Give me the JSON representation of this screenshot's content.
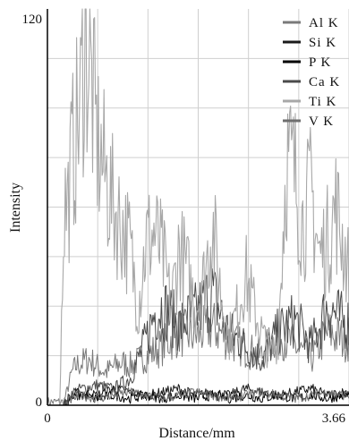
{
  "chart_data": {
    "type": "line",
    "title": "",
    "xlabel": "Distance/mm",
    "ylabel": "Intensity",
    "xlim": [
      0,
      3.66
    ],
    "ylim": [
      0,
      120
    ],
    "x_tick_labels": [
      "0",
      "3.66"
    ],
    "y_tick_labels": [
      "0",
      "120"
    ],
    "grid": true,
    "legend_position": "top-right",
    "series": [
      {
        "name": "Al K",
        "color": "#7a7a7a",
        "x": [
          0,
          0.2,
          0.3,
          0.35,
          0.5,
          0.7,
          0.9,
          1.0,
          1.2,
          1.4,
          1.6,
          1.8,
          2.0,
          2.2,
          2.4,
          2.6,
          2.8,
          3.0,
          3.2,
          3.4,
          3.6
        ],
        "values": [
          1,
          1,
          10,
          12,
          14,
          10,
          13,
          12,
          15,
          18,
          22,
          21,
          24,
          20,
          17,
          15,
          22,
          18,
          14,
          22,
          20
        ]
      },
      {
        "name": "Si K",
        "color": "#1a1a1a",
        "x": [
          0,
          0.2,
          0.3,
          0.4,
          0.6,
          0.8,
          1.0,
          1.2,
          1.4,
          1.6,
          1.8,
          2.0,
          2.2,
          2.4,
          2.6,
          2.8,
          3.0,
          3.2,
          3.4,
          3.6
        ],
        "values": [
          0,
          0,
          3,
          4,
          3,
          5,
          4,
          3,
          4,
          5,
          3,
          4,
          3,
          5,
          4,
          3,
          4,
          5,
          3,
          4
        ]
      },
      {
        "name": "P K",
        "color": "#000000",
        "x": [
          0,
          0.2,
          0.3,
          0.4,
          0.6,
          0.8,
          1.0,
          1.2,
          1.4,
          1.6,
          1.8,
          2.0,
          2.2,
          2.4,
          2.6,
          2.8,
          3.0,
          3.2,
          3.4,
          3.6
        ],
        "values": [
          0,
          0,
          2,
          3,
          2,
          3,
          2,
          3,
          2,
          3,
          2,
          3,
          2,
          3,
          2,
          3,
          2,
          3,
          2,
          3
        ]
      },
      {
        "name": "Ca K",
        "color": "#4a4a4a",
        "x": [
          0,
          0.2,
          0.3,
          0.4,
          0.6,
          0.8,
          1.0,
          1.2,
          1.3,
          1.4,
          1.6,
          1.8,
          2.0,
          2.2,
          2.4,
          2.6,
          2.8,
          3.0,
          3.2,
          3.4,
          3.6
        ],
        "values": [
          0,
          0,
          4,
          5,
          6,
          5,
          8,
          20,
          28,
          30,
          24,
          28,
          34,
          22,
          18,
          14,
          22,
          26,
          18,
          30,
          25
        ]
      },
      {
        "name": "Ti K",
        "color": "#a8a8a8",
        "x": [
          0,
          0.15,
          0.2,
          0.25,
          0.3,
          0.4,
          0.45,
          0.5,
          0.6,
          0.7,
          0.8,
          0.9,
          1.0,
          1.1,
          1.2,
          1.3,
          1.4,
          1.5,
          1.6,
          1.7,
          1.8,
          1.9,
          2.0,
          2.1,
          2.2,
          2.3,
          2.4,
          2.5,
          2.6,
          2.7,
          2.8,
          2.9,
          3.0,
          3.1,
          3.2,
          3.3,
          3.4,
          3.5,
          3.66
        ],
        "values": [
          0,
          0,
          60,
          62,
          75,
          90,
          112,
          105,
          80,
          70,
          60,
          55,
          48,
          30,
          50,
          52,
          45,
          30,
          48,
          40,
          30,
          38,
          55,
          35,
          20,
          28,
          40,
          30,
          22,
          15,
          20,
          75,
          70,
          55,
          65,
          45,
          50,
          60,
          40
        ]
      },
      {
        "name": "V K",
        "color": "#6e6e6e",
        "x": [
          0,
          0.2,
          0.3,
          0.4,
          0.6,
          0.8,
          1.0,
          1.2,
          1.4,
          1.6,
          1.8,
          2.0,
          2.2,
          2.4,
          2.6,
          2.8,
          3.0,
          3.2,
          3.4,
          3.6
        ],
        "values": [
          0,
          0,
          2,
          3,
          2,
          3,
          4,
          3,
          2,
          3,
          4,
          3,
          2,
          3,
          4,
          3,
          2,
          3,
          4,
          3
        ]
      }
    ]
  }
}
